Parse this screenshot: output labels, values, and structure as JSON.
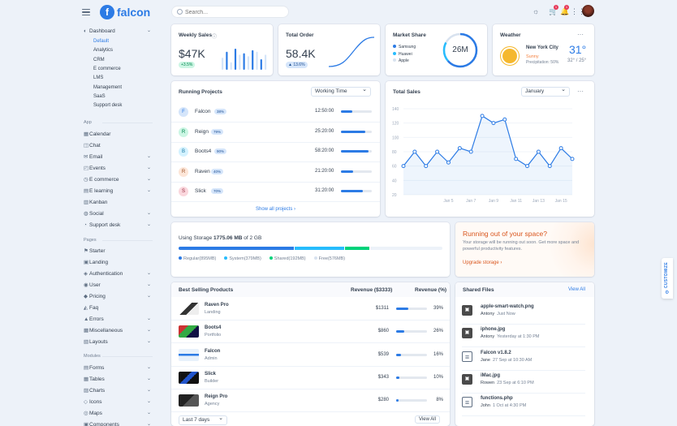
{
  "nav": {
    "brand": "falcon",
    "search_placeholder": "Search...",
    "cart_count": "1",
    "bell_count": "1"
  },
  "sidebar": {
    "dashboard": {
      "label": "Dashboard",
      "subitems": [
        "Default",
        "Analytics",
        "CRM",
        "E commerce",
        "LMS",
        "Management",
        "SaaS",
        "Support desk"
      ]
    },
    "section_app": "App",
    "app_items": [
      "Calendar",
      "Chat",
      "Email",
      "Events",
      "E commerce",
      "E learning",
      "Kanban",
      "Social",
      "Support desk"
    ],
    "section_pages": "Pages",
    "page_items": [
      "Starter",
      "Landing",
      "Authentication",
      "User",
      "Pricing",
      "Faq",
      "Errors",
      "Miscellaneous",
      "Layouts"
    ],
    "section_modules": "Modules",
    "module_items": [
      "Forms",
      "Tables",
      "Charts",
      "Icons",
      "Maps",
      "Components"
    ]
  },
  "weekly_sales": {
    "title": "Weekly Sales",
    "value": "$47K",
    "change": "+3.5%",
    "bars": [
      8,
      12,
      5,
      14,
      10,
      11,
      9,
      13,
      12,
      7,
      10
    ]
  },
  "total_order": {
    "title": "Total Order",
    "value": "58.4K",
    "change": "13.6%"
  },
  "market_share": {
    "title": "Market Share",
    "value": "26M",
    "legend": [
      {
        "name": "Samsung",
        "color": "#2c7be5"
      },
      {
        "name": "Huawei",
        "color": "#27bcfd"
      },
      {
        "name": "Apple",
        "color": "#d8e2ef"
      }
    ]
  },
  "weather": {
    "title": "Weather",
    "city": "New York City",
    "condition": "Sunny",
    "precipitation": "Precipitation: 50%",
    "temp": "31°",
    "range": "32° / 25°"
  },
  "running_projects": {
    "title": "Running Projects",
    "select": "Working Time",
    "footer": "Show all projects",
    "rows": [
      {
        "initial": "F",
        "name": "Falcon",
        "pct": "38%",
        "time": "12:50:00",
        "progress": 0.38,
        "bg": "#d5e5fa",
        "fg": "#2c7be5"
      },
      {
        "initial": "R",
        "name": "Reign",
        "pct": "79%",
        "time": "25:20:00",
        "progress": 0.79,
        "bg": "#ccf6e4",
        "fg": "#00864e"
      },
      {
        "initial": "B",
        "name": "Boots4",
        "pct": "90%",
        "time": "58:20:00",
        "progress": 0.9,
        "bg": "#d4f2ff",
        "fg": "#1978a2"
      },
      {
        "initial": "R",
        "name": "Raven",
        "pct": "40%",
        "time": "21:20:00",
        "progress": 0.4,
        "bg": "#fde6d8",
        "fg": "#9d5228"
      },
      {
        "initial": "S",
        "name": "Slick",
        "pct": "70%",
        "time": "31:20:00",
        "progress": 0.7,
        "bg": "#fad7dd",
        "fg": "#932338"
      }
    ]
  },
  "chart_data": {
    "type": "line",
    "title": "Total Sales",
    "select": "January",
    "x": [
      "Jan 1",
      "Jan 2",
      "Jan 3",
      "Jan 4",
      "Jan 5",
      "Jan 6",
      "Jan 7",
      "Jan 8",
      "Jan 9",
      "Jan 10",
      "Jan 11",
      "Jan 12",
      "Jan 13",
      "Jan 14",
      "Jan 15",
      "Jan 16"
    ],
    "x_tick_labels": [
      "Jan 5",
      "Jan 7",
      "Jan 9",
      "Jan 11",
      "Jan 13",
      "Jan 15"
    ],
    "series": [
      {
        "values": [
          60,
          80,
          60,
          80,
          65,
          85,
          80,
          130,
          120,
          125,
          70,
          60,
          80,
          60,
          85,
          70
        ]
      }
    ],
    "y_ticks": [
      20,
      40,
      60,
      80,
      100,
      120,
      140
    ],
    "ylim": [
      20,
      140
    ],
    "grid": true
  },
  "storage": {
    "label": "Using Storage",
    "used": "1775.06 MB",
    "total": "of 2 GB",
    "segments": [
      {
        "name": "Regular(895MB)",
        "value": 895,
        "color": "#2c7be5"
      },
      {
        "name": "System(379MB)",
        "value": 379,
        "color": "#27bcfd"
      },
      {
        "name": "Shared(192MB)",
        "value": 192,
        "color": "#00d27a"
      },
      {
        "name": "Free(576MB)",
        "value": 576,
        "color": "#edf2f9"
      }
    ]
  },
  "space_alert": {
    "title": "Running out of your space?",
    "body": "Your storage will be running out soon. Get more space and powerful productivity features.",
    "link": "Upgrade storage"
  },
  "best_selling": {
    "title": "Best Selling Products",
    "col_revenue": "Revenue ($3333)",
    "col_pct": "Revenue (%)",
    "select": "Last 7 days",
    "view_all": "View All",
    "rows": [
      {
        "name": "Raven Pro",
        "category": "Landing",
        "revenue": "$1311",
        "pct": "39%",
        "progress": 0.39
      },
      {
        "name": "Boots4",
        "category": "Portfolio",
        "revenue": "$860",
        "pct": "26%",
        "progress": 0.26
      },
      {
        "name": "Falcon",
        "category": "Admin",
        "revenue": "$539",
        "pct": "16%",
        "progress": 0.16
      },
      {
        "name": "Slick",
        "category": "Builder",
        "revenue": "$343",
        "pct": "10%",
        "progress": 0.1
      },
      {
        "name": "Reign Pro",
        "category": "Agency",
        "revenue": "$280",
        "pct": "8%",
        "progress": 0.08
      }
    ]
  },
  "shared_files": {
    "title": "Shared Files",
    "view_all": "View All",
    "rows": [
      {
        "name": "apple-smart-watch.png",
        "user": "Antony",
        "time": "Just Now",
        "icon": "image"
      },
      {
        "name": "iphone.jpg",
        "user": "Antony",
        "time": "Yesterday at 1:30 PM",
        "icon": "image"
      },
      {
        "name": "Falcon v1.8.2",
        "user": "Jane",
        "time": "27 Sep at 10:30 AM",
        "icon": "file"
      },
      {
        "name": "iMac.jpg",
        "user": "Rowen",
        "time": "23 Sep at 6:10 PM",
        "icon": "image"
      },
      {
        "name": "functions.php",
        "user": "John",
        "time": "1 Oct at 4:30 PM",
        "icon": "file"
      }
    ]
  },
  "customize": "CUSTOMIZE"
}
